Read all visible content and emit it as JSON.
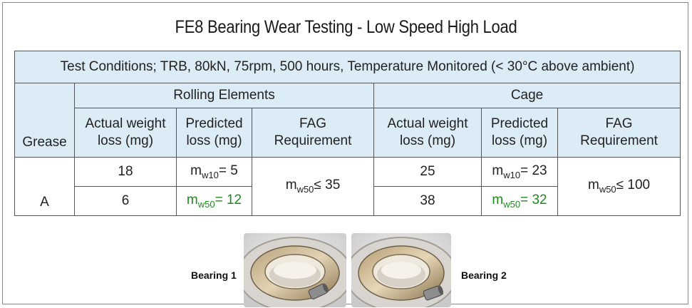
{
  "title": "FE8 Bearing Wear Testing - Low Speed High Load",
  "table": {
    "conditions": "Test Conditions; TRB, 80kN, 75rpm, 500 hours, Temperature Monitored   (< 30°C above ambient)",
    "grease_header": "Grease",
    "groups": [
      "Rolling Elements",
      "Cage"
    ],
    "sub_headers": {
      "actual_1": "Actual weight",
      "actual_2": "loss (mg)",
      "pred_1": "Predicted",
      "pred_2": "loss (mg)",
      "fag_1": "FAG",
      "fag_2": "Requirement"
    },
    "grease": "A",
    "rolling": {
      "actual": [
        "18",
        "6"
      ],
      "predicted": [
        {
          "m": "m",
          "sub": "w10",
          "rest": "= 5"
        },
        {
          "m": "m",
          "sub": "w50",
          "rest": "= 12"
        }
      ],
      "fag": {
        "m": "m",
        "sub": "w50",
        "rest": "≤ 35"
      }
    },
    "cage": {
      "actual": [
        "25",
        "38"
      ],
      "predicted": [
        {
          "m": "m",
          "sub": "w10",
          "rest": "= 23"
        },
        {
          "m": "m",
          "sub": "w50",
          "rest": "=  32"
        }
      ],
      "fag": {
        "m": "m",
        "sub": "w50",
        "rest": "≤ 100"
      }
    }
  },
  "photos": [
    {
      "caption": "Bearing 1"
    },
    {
      "caption": "Bearing 2"
    }
  ],
  "colors": {
    "header_bg": "#dcecf7",
    "green_text": "#1e8a1e"
  }
}
